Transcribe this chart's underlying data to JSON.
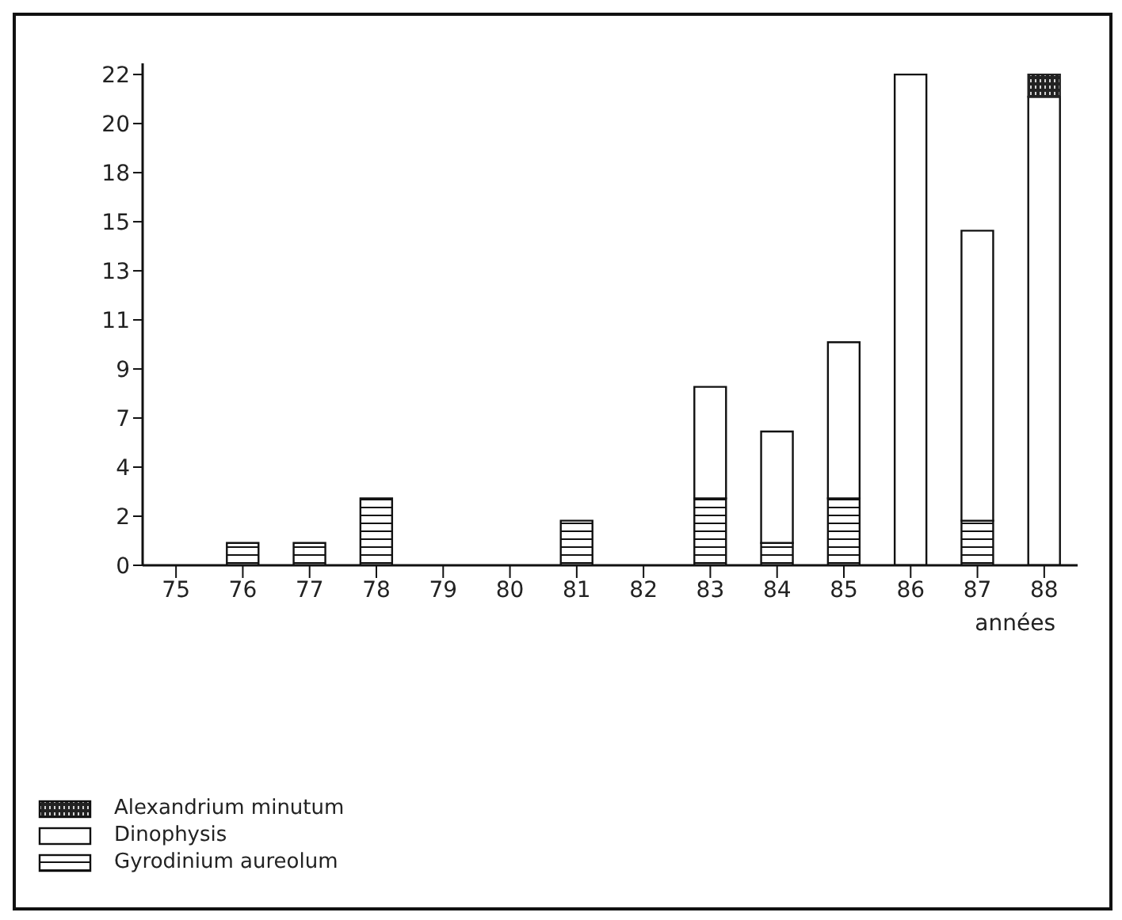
{
  "chart_data": {
    "type": "bar",
    "stacked": true,
    "xlabel": "années",
    "categories": [
      "75",
      "76",
      "77",
      "78",
      "79",
      "80",
      "81",
      "82",
      "83",
      "84",
      "85",
      "86",
      "87",
      "88"
    ],
    "series": [
      {
        "name": "Gyrodinium aureolum",
        "color": "#111111",
        "values": [
          0,
          1,
          1,
          3,
          0,
          0,
          2,
          0,
          3,
          1,
          3,
          0,
          2,
          0
        ]
      },
      {
        "name": "Dinophysis",
        "color": "#ffffff",
        "values": [
          0,
          0,
          0,
          0,
          0,
          0,
          0,
          0,
          5,
          5,
          7,
          22,
          13,
          21
        ]
      },
      {
        "name": "Alexandrium minutum",
        "color": "#222222",
        "values": [
          0,
          0,
          0,
          0,
          0,
          0,
          0,
          0,
          0,
          0,
          0,
          0,
          0,
          1
        ]
      }
    ],
    "ylim": [
      0,
      22.5
    ],
    "yticks": [
      0,
      {
        "value": 2.2,
        "label": "2"
      },
      {
        "value": 4.4,
        "label": "4"
      },
      {
        "value": 6.6,
        "label": "7"
      },
      {
        "value": 8.8,
        "label": "9"
      },
      11,
      {
        "value": 13.2,
        "label": "13"
      },
      {
        "value": 15.4,
        "label": "15"
      },
      {
        "value": 17.6,
        "label": "18"
      },
      {
        "value": 19.8,
        "label": "20"
      },
      22
    ],
    "legend": "bottom left",
    "grid": false
  }
}
